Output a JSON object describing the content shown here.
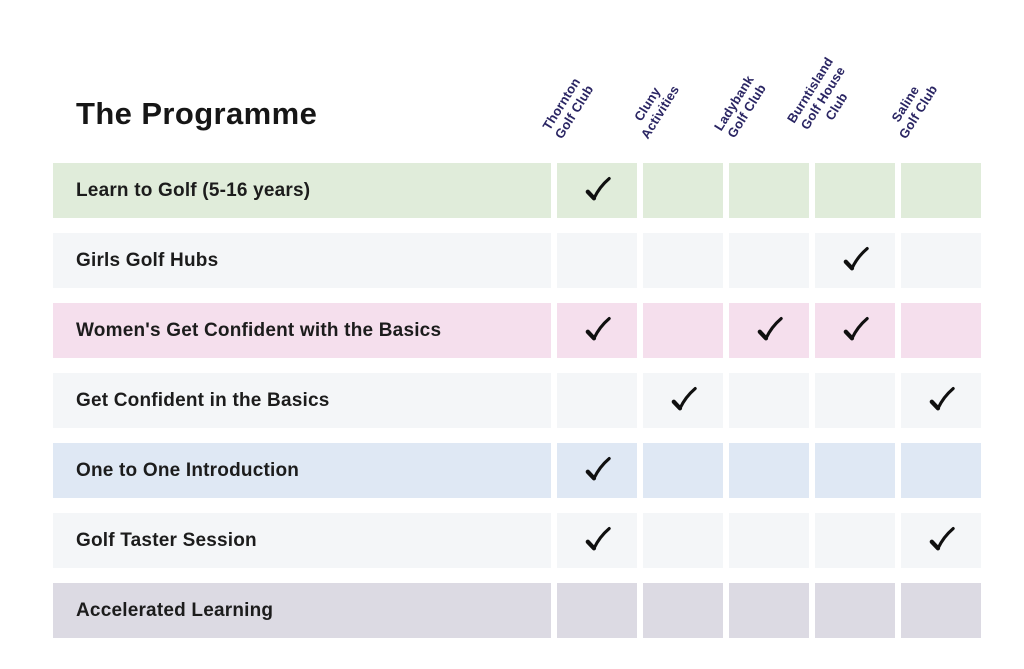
{
  "title": "The Programme",
  "colors": {
    "header_text": "#2a2563",
    "row_label_text": "#1c1c1c",
    "check": "#101010",
    "page_background": "#ffffff"
  },
  "table": {
    "columns": [
      {
        "id": "thornton",
        "label": "Thornton\nGolf Club"
      },
      {
        "id": "cluny",
        "label": "Cluny\nActivities"
      },
      {
        "id": "ladybank",
        "label": "Ladybank\nGolf Club"
      },
      {
        "id": "burntisland",
        "label": "Burntisland\nGolf House\nClub"
      },
      {
        "id": "saline",
        "label": "Saline\nGolf Club"
      }
    ],
    "rows": [
      {
        "label": "Learn to Golf (5-16 years)",
        "bg": "#e0ecda",
        "checks": [
          true,
          false,
          false,
          false,
          false
        ]
      },
      {
        "label": "Girls Golf Hubs",
        "bg": "#f4f6f8",
        "checks": [
          false,
          false,
          false,
          true,
          false
        ]
      },
      {
        "label": "Women's Get Confident with the Basics",
        "bg": "#f5dfed",
        "checks": [
          true,
          false,
          true,
          true,
          false
        ]
      },
      {
        "label": "Get Confident in the Basics",
        "bg": "#f4f6f8",
        "checks": [
          false,
          true,
          false,
          false,
          true
        ]
      },
      {
        "label": "One to One Introduction",
        "bg": "#dfe8f4",
        "checks": [
          true,
          false,
          false,
          false,
          false
        ]
      },
      {
        "label": "Golf Taster Session",
        "bg": "#f4f6f8",
        "checks": [
          true,
          false,
          false,
          false,
          true
        ]
      },
      {
        "label": "Accelerated Learning",
        "bg": "#dcdae3",
        "checks": [
          false,
          false,
          false,
          false,
          false
        ]
      }
    ]
  },
  "chart_data": {
    "type": "table",
    "title": "The Programme",
    "columns": [
      "Thornton Golf Club",
      "Cluny Activities",
      "Ladybank Golf Club",
      "Burntisland Golf House Club",
      "Saline Golf Club"
    ],
    "row_labels": [
      "Learn to Golf (5-16 years)",
      "Girls Golf Hubs",
      "Women's Get Confident with the Basics",
      "Get Confident in the Basics",
      "One to One Introduction",
      "Golf Taster Session",
      "Accelerated Learning"
    ],
    "matrix": [
      [
        1,
        0,
        0,
        0,
        0
      ],
      [
        0,
        0,
        0,
        1,
        0
      ],
      [
        1,
        0,
        1,
        1,
        0
      ],
      [
        0,
        1,
        0,
        0,
        1
      ],
      [
        1,
        0,
        0,
        0,
        0
      ],
      [
        1,
        0,
        0,
        0,
        1
      ],
      [
        0,
        0,
        0,
        0,
        0
      ]
    ],
    "legend_position": "none",
    "grid": false
  }
}
